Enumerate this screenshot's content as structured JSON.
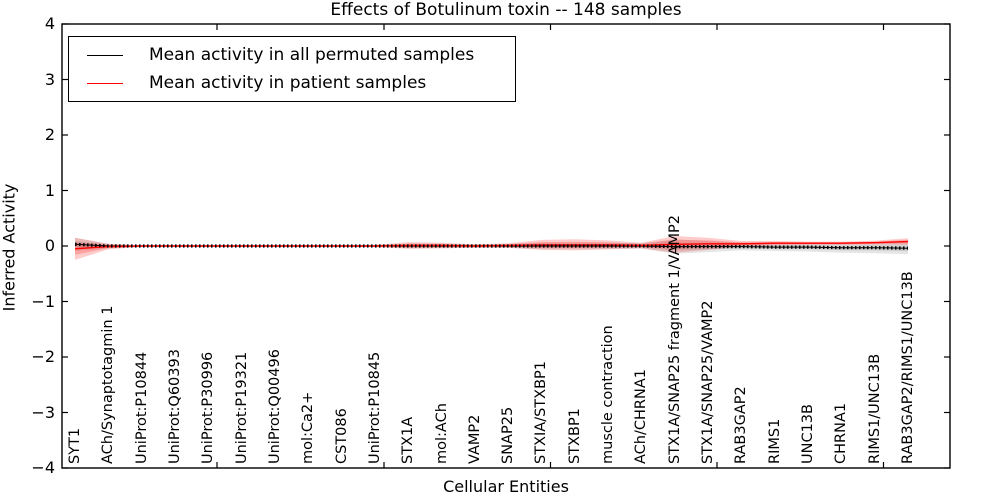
{
  "chart_data": {
    "type": "line",
    "title": "Effects of Botulinum toxin -- 148 samples",
    "xlabel": "Cellular Entities",
    "ylabel": "Inferred Activity",
    "ylim": [
      -4,
      4
    ],
    "yticks": [
      4,
      3,
      2,
      1,
      0,
      -1,
      -2,
      -3,
      -4
    ],
    "ytick_labels": [
      "4",
      "3",
      "2",
      "1",
      "0",
      "−1",
      "−2",
      "−3",
      "−4"
    ],
    "grid": false,
    "legend_position": "upper left",
    "categories": [
      "SYT1",
      "ACh/Synaptotagmin 1",
      "UniProt:P10844",
      "UniProt:Q60393",
      "UniProt:P30996",
      "UniProt:P19321",
      "UniProt:Q00496",
      "mol:Ca2+",
      "CST086",
      "UniProt:P10845",
      "STX1A",
      "mol:ACh",
      "VAMP2",
      "SNAP25",
      "STXIA/STXBP1",
      "STXBP1",
      "muscle contraction",
      "ACh/CHRNA1",
      "STX1A/SNAP25 fragment 1/VAMP2",
      "STX1A/SNAP25/VAMP2",
      "RAB3GAP2",
      "RIMS1",
      "UNC13B",
      "CHRNA1",
      "RIMS1/UNC13B",
      "RAB3GAP2/RIMS1/UNC13B"
    ],
    "series": [
      {
        "name": "Mean activity in all permuted samples",
        "color": "#000000",
        "band_color_rgba": "rgba(0,0,0,0.10)",
        "line_style": "solid-with-dot-markers",
        "values": [
          0.03,
          0,
          0,
          0,
          0,
          0,
          0,
          0,
          0,
          0,
          0,
          0,
          0,
          0,
          0,
          0,
          0,
          0,
          -0.01,
          -0.01,
          -0.01,
          -0.02,
          -0.02,
          -0.03,
          -0.03,
          -0.04
        ],
        "std": [
          0.12,
          0.04,
          0.012,
          0.012,
          0.012,
          0.012,
          0.012,
          0.012,
          0.012,
          0.015,
          0.04,
          0.04,
          0.03,
          0.035,
          0.06,
          0.06,
          0.06,
          0.05,
          0.13,
          0.1,
          0.07,
          0.07,
          0.08,
          0.09,
          0.1,
          0.11
        ]
      },
      {
        "name": "Mean activity in patient samples",
        "color": "#ff0000",
        "band_color_rgba": "rgba(255,0,0,0.20)",
        "line_style": "solid",
        "values": [
          -0.05,
          -0.01,
          0,
          0,
          0,
          0,
          0,
          0,
          0,
          0,
          0.01,
          0.01,
          0,
          0.01,
          0.02,
          0.02,
          0.02,
          0.01,
          0.03,
          0.04,
          0.04,
          0.05,
          0.05,
          0.05,
          0.06,
          0.08
        ],
        "std": [
          0.2,
          0.05,
          0.015,
          0.012,
          0.012,
          0.012,
          0.012,
          0.012,
          0.012,
          0.02,
          0.06,
          0.05,
          0.03,
          0.04,
          0.09,
          0.1,
          0.08,
          0.05,
          0.15,
          0.11,
          0.05,
          0.04,
          0.03,
          0.03,
          0.035,
          0.06
        ]
      }
    ]
  }
}
